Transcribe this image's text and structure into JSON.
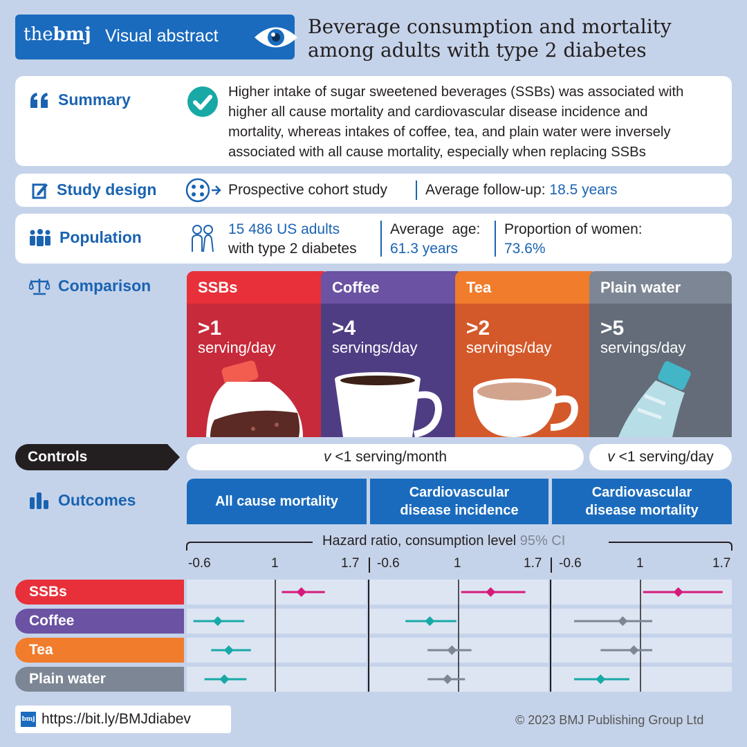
{
  "header": {
    "logo_the": "the",
    "logo_bmj": "bmj",
    "label": "Visual abstract",
    "title_line1": "Beverage consumption and mortality",
    "title_line2": "among adults with type 2 diabetes"
  },
  "summary": {
    "heading": "Summary",
    "line1": "Higher intake of sugar sweetened beverages (SSBs) was associated with",
    "line2": "higher all cause mortality and cardiovascular disease incidence and",
    "line3": "mortality, whereas intakes of coffee, tea, and plain water were inversely",
    "line4": "associated with all cause mortality, especially when replacing SSBs"
  },
  "design": {
    "heading": "Study design",
    "type": "Prospective cohort study",
    "followup_label": "Average follow-up: ",
    "followup_value": "18.5 years"
  },
  "population": {
    "heading": "Population",
    "count": "15 486 US adults",
    "count_sub": "with type 2 diabetes",
    "age_label": "Average  age:",
    "age_value": "61.3 years",
    "women_label": "Proportion of women:",
    "women_value": "73.6%"
  },
  "comparison": {
    "heading": "Comparison",
    "groups": [
      {
        "name": "SSBs",
        "amount": ">1",
        "unit": "serving/day",
        "color": "#e8303a"
      },
      {
        "name": "Coffee",
        "amount": ">4",
        "unit": "servings/day",
        "color": "#6b52a3"
      },
      {
        "name": "Tea",
        "amount": ">2",
        "unit": "servings/day",
        "color": "#f07c2c"
      },
      {
        "name": "Plain water",
        "amount": ">5",
        "unit": "servings/day",
        "color": "#7d8694"
      }
    ]
  },
  "controls": {
    "label": "Controls",
    "v1": "v",
    "text1": " <1 serving/month",
    "v2": "v",
    "text2": " <1 serving/day"
  },
  "outcomes": {
    "heading": "Outcomes",
    "o1": "All cause mortality",
    "o2_line1": "Cardiovascular",
    "o2_line2": "disease incidence",
    "o3_line1": "Cardiovascular",
    "o3_line2": "disease mortality",
    "axis_title": "Hazard ratio, consumption level",
    "ci_label": "95% CI",
    "ticks": [
      "-0.6",
      "1",
      "1.7"
    ]
  },
  "chart_data": {
    "type": "scatter",
    "title": "Hazard ratio, consumption level",
    "axis_ticks": [
      "-0.6",
      "1",
      "1.7"
    ],
    "panels": [
      "All cause mortality",
      "Cardiovascular disease incidence",
      "Cardiovascular disease mortality"
    ],
    "rows": [
      "SSBs",
      "Coffee",
      "Tea",
      "Plain water"
    ],
    "series": [
      {
        "name": "SSBs",
        "points": [
          {
            "panel": 0,
            "hr": 1.2,
            "lo": 1.05,
            "hi": 1.38
          },
          {
            "panel": 1,
            "hr": 1.25,
            "lo": 1.02,
            "hi": 1.52
          },
          {
            "panel": 2,
            "hr": 1.29,
            "lo": 1.02,
            "hi": 1.63
          }
        ]
      },
      {
        "name": "Coffee",
        "points": [
          {
            "panel": 0,
            "hr": 0.74,
            "lo": 0.63,
            "hi": 0.86
          },
          {
            "panel": 1,
            "hr": 0.87,
            "lo": 0.76,
            "hi": 0.99
          },
          {
            "panel": 2,
            "hr": 0.92,
            "lo": 0.7,
            "hi": 1.09
          }
        ]
      },
      {
        "name": "Tea",
        "points": [
          {
            "panel": 0,
            "hr": 0.79,
            "lo": 0.71,
            "hi": 0.89
          },
          {
            "panel": 1,
            "hr": 0.97,
            "lo": 0.86,
            "hi": 1.1
          },
          {
            "panel": 2,
            "hr": 0.97,
            "lo": 0.82,
            "hi": 1.09
          }
        ]
      },
      {
        "name": "Plain water",
        "points": [
          {
            "panel": 0,
            "hr": 0.77,
            "lo": 0.68,
            "hi": 0.87
          },
          {
            "panel": 1,
            "hr": 0.95,
            "lo": 0.86,
            "hi": 1.05
          },
          {
            "panel": 2,
            "hr": 0.82,
            "lo": 0.7,
            "hi": 0.95
          }
        ]
      }
    ],
    "colors": {
      "significant_ssb": "#d6197b",
      "significant_inverse": "#18a9a6",
      "nonsignificant": "#7d8694"
    }
  },
  "footer": {
    "url": "https://bit.ly/BMJdiabev",
    "badge": "bmj",
    "copyright": "© 2023 BMJ Publishing Group Ltd"
  }
}
